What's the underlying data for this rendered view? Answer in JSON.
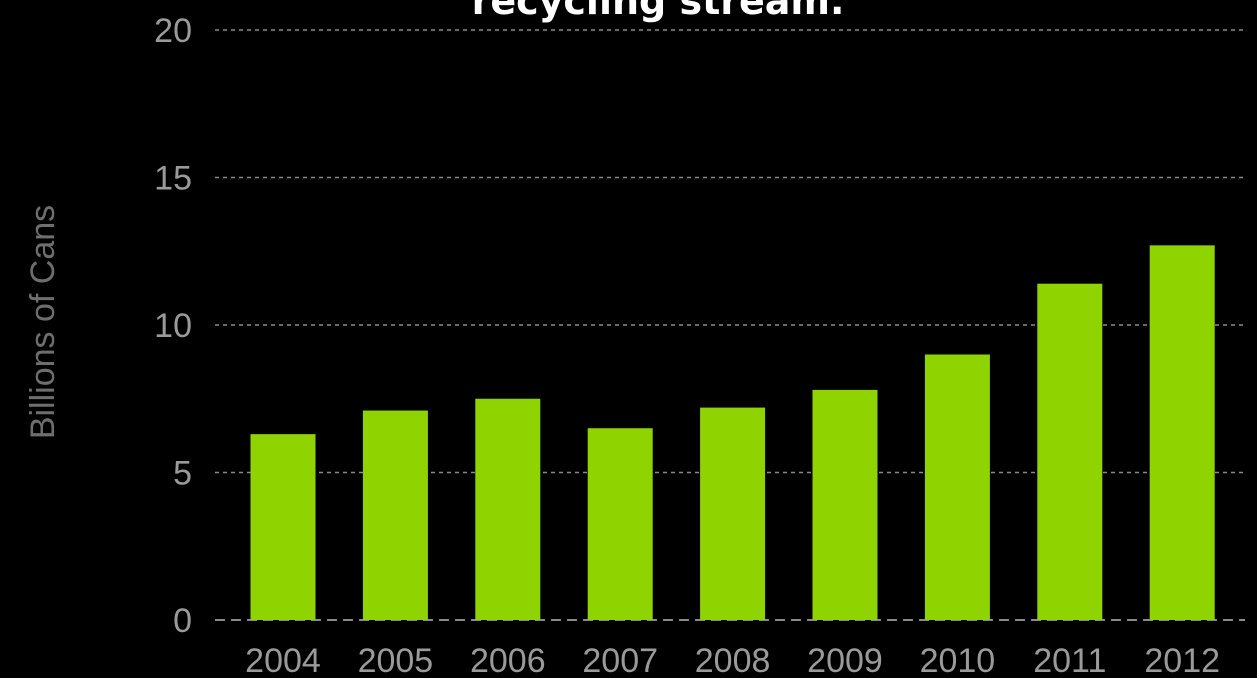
{
  "chart_data": {
    "type": "bar",
    "title": "recycling stream.",
    "ylabel": "Billions of Cans",
    "xlabel": "",
    "categories": [
      "2004",
      "2005",
      "2006",
      "2007",
      "2008",
      "2009",
      "2010",
      "2011",
      "2012"
    ],
    "values": [
      6.3,
      7.1,
      7.5,
      6.5,
      7.2,
      7.8,
      9.0,
      11.4,
      12.7
    ],
    "ylim": [
      0,
      20
    ],
    "yticks": [
      "0",
      "5",
      "10",
      "15",
      "20"
    ],
    "grid": true,
    "legend": "none",
    "colors": {
      "bar": "#8fd400",
      "background": "#000000",
      "grid": "#8a8a8a",
      "title": "#ffffff",
      "tick": "#9a9a9a",
      "ylabel": "#6e6e6e"
    }
  }
}
